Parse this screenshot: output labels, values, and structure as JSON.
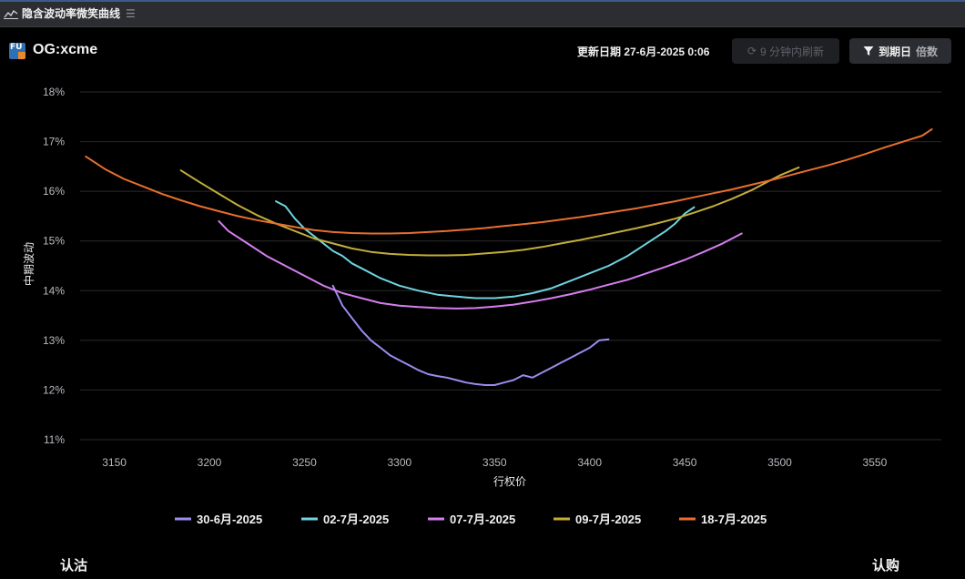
{
  "window": {
    "title": "隐含波动率微笑曲线",
    "menu_icon": "hamburger-icon"
  },
  "header": {
    "contract": "OG:xcme",
    "update_text": "更新日期 27-6月-2025 0:06",
    "refresh_label": "9 分钟内刷新",
    "expiry_label": "到期日",
    "multiple_label": "倍数"
  },
  "footer": {
    "put_label": "认沽",
    "call_label": "认购"
  },
  "colors": {
    "background": "#000000",
    "grid": "#2a2a2a"
  },
  "chart_data": {
    "type": "line",
    "title": "",
    "xlabel": "行权价",
    "ylabel": "中期波动",
    "xlim": [
      3132,
      3585
    ],
    "ylim": [
      11,
      18
    ],
    "x_ticks": [
      3150,
      3200,
      3250,
      3300,
      3350,
      3400,
      3450,
      3500,
      3550
    ],
    "y_ticks": [
      11,
      12,
      13,
      14,
      15,
      16,
      17,
      18
    ],
    "y_tick_suffix": "%",
    "grid": true,
    "legend_position": "bottom",
    "series": [
      {
        "name": "30-6月-2025",
        "color": "#9b8cf0",
        "x": [
          3265,
          3270,
          3275,
          3280,
          3285,
          3290,
          3295,
          3300,
          3305,
          3310,
          3315,
          3320,
          3325,
          3330,
          3335,
          3340,
          3345,
          3350,
          3355,
          3360,
          3365,
          3370,
          3375,
          3380,
          3385,
          3390,
          3395,
          3400,
          3405,
          3410
        ],
        "y": [
          14.1,
          13.7,
          13.45,
          13.2,
          13.0,
          12.85,
          12.7,
          12.6,
          12.5,
          12.4,
          12.32,
          12.28,
          12.25,
          12.2,
          12.15,
          12.12,
          12.1,
          12.1,
          12.15,
          12.2,
          12.3,
          12.25,
          12.35,
          12.45,
          12.55,
          12.65,
          12.75,
          12.85,
          13.0,
          13.02
        ]
      },
      {
        "name": "02-7月-2025",
        "color": "#6fd4e0",
        "x": [
          3235,
          3240,
          3245,
          3250,
          3255,
          3260,
          3265,
          3270,
          3275,
          3280,
          3290,
          3300,
          3310,
          3320,
          3330,
          3340,
          3350,
          3360,
          3370,
          3380,
          3390,
          3400,
          3410,
          3420,
          3430,
          3440,
          3445,
          3450,
          3455
        ],
        "y": [
          15.8,
          15.7,
          15.45,
          15.25,
          15.1,
          14.95,
          14.8,
          14.7,
          14.55,
          14.45,
          14.25,
          14.1,
          14.0,
          13.92,
          13.88,
          13.85,
          13.85,
          13.88,
          13.95,
          14.05,
          14.2,
          14.35,
          14.5,
          14.7,
          14.95,
          15.2,
          15.35,
          15.55,
          15.68
        ]
      },
      {
        "name": "07-7月-2025",
        "color": "#d67ef0",
        "x": [
          3205,
          3210,
          3220,
          3230,
          3240,
          3250,
          3260,
          3270,
          3280,
          3290,
          3300,
          3310,
          3320,
          3330,
          3340,
          3350,
          3360,
          3370,
          3380,
          3390,
          3400,
          3410,
          3420,
          3430,
          3440,
          3450,
          3460,
          3470,
          3480
        ],
        "y": [
          15.4,
          15.2,
          14.95,
          14.7,
          14.5,
          14.3,
          14.1,
          13.95,
          13.85,
          13.75,
          13.7,
          13.67,
          13.65,
          13.64,
          13.65,
          13.68,
          13.72,
          13.78,
          13.85,
          13.93,
          14.02,
          14.12,
          14.22,
          14.35,
          14.48,
          14.62,
          14.78,
          14.95,
          15.15
        ]
      },
      {
        "name": "09-7月-2025",
        "color": "#c2ad3a",
        "x": [
          3185,
          3195,
          3205,
          3215,
          3225,
          3235,
          3245,
          3255,
          3265,
          3275,
          3285,
          3295,
          3305,
          3315,
          3325,
          3335,
          3345,
          3355,
          3365,
          3375,
          3385,
          3395,
          3405,
          3415,
          3425,
          3435,
          3445,
          3455,
          3465,
          3475,
          3485,
          3495,
          3500,
          3510
        ],
        "y": [
          16.42,
          16.18,
          15.95,
          15.72,
          15.52,
          15.35,
          15.2,
          15.05,
          14.95,
          14.85,
          14.78,
          14.74,
          14.72,
          14.71,
          14.71,
          14.72,
          14.75,
          14.78,
          14.82,
          14.88,
          14.95,
          15.02,
          15.1,
          15.18,
          15.26,
          15.35,
          15.45,
          15.57,
          15.7,
          15.85,
          16.02,
          16.22,
          16.32,
          16.48
        ]
      },
      {
        "name": "18-7月-2025",
        "color": "#e86f2e",
        "x": [
          3135,
          3145,
          3155,
          3165,
          3175,
          3185,
          3195,
          3205,
          3215,
          3225,
          3235,
          3245,
          3255,
          3265,
          3275,
          3285,
          3295,
          3305,
          3315,
          3325,
          3335,
          3345,
          3355,
          3365,
          3375,
          3385,
          3395,
          3405,
          3415,
          3425,
          3435,
          3445,
          3455,
          3465,
          3475,
          3485,
          3495,
          3505,
          3515,
          3525,
          3535,
          3545,
          3555,
          3565,
          3575,
          3580
        ],
        "y": [
          16.7,
          16.45,
          16.25,
          16.1,
          15.95,
          15.82,
          15.7,
          15.6,
          15.5,
          15.42,
          15.35,
          15.28,
          15.22,
          15.18,
          15.16,
          15.15,
          15.15,
          15.16,
          15.18,
          15.2,
          15.23,
          15.26,
          15.3,
          15.34,
          15.38,
          15.43,
          15.48,
          15.54,
          15.6,
          15.66,
          15.73,
          15.8,
          15.88,
          15.96,
          16.04,
          16.13,
          16.22,
          16.32,
          16.42,
          16.52,
          16.63,
          16.75,
          16.88,
          17.0,
          17.12,
          17.25
        ]
      }
    ]
  }
}
